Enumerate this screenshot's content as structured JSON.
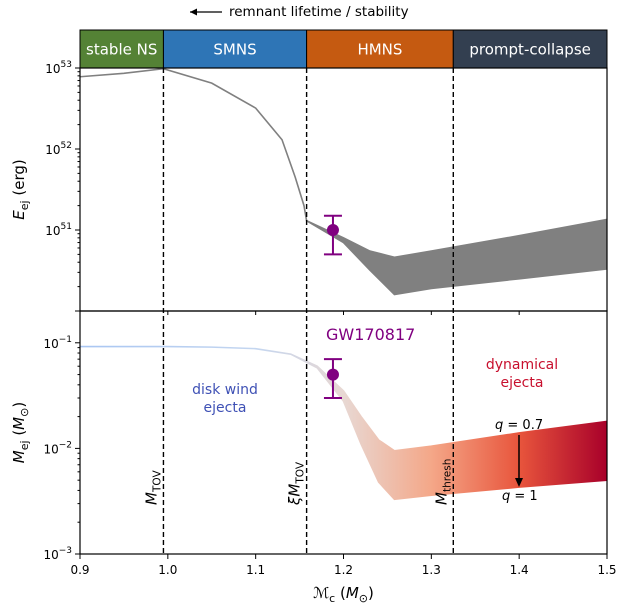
{
  "chart_data": [
    {
      "type": "area",
      "panel": "top",
      "ylabel": "E_ej (erg)",
      "yscale": "log",
      "ylim": [
        1e+50,
        1e+53
      ],
      "xlim": [
        0.9,
        1.5
      ],
      "y_ticks": [
        {
          "mantissa": "10",
          "exp": "51",
          "value": 1e+51
        },
        {
          "mantissa": "10",
          "exp": "52",
          "value": 1e+52
        },
        {
          "mantissa": "10",
          "exp": "53",
          "value": 1e+53
        }
      ],
      "band_color": "#808080",
      "series": [
        {
          "x": [
            0.9,
            0.95,
            0.995,
            1.05,
            1.1,
            1.13,
            1.145,
            1.155,
            1.158,
            1.2,
            1.23,
            1.258,
            1.3,
            1.4,
            1.5
          ],
          "upper": [
            7.8e+52,
            8.6e+52,
            9.8e+52,
            6.5e+52,
            3.2e+52,
            1.3e+52,
            4.5e+51,
            2e+51,
            1.3e+51,
            8e+50,
            5.5e+50,
            4.6e+50,
            5.5e+50,
            8.5e+50,
            1.35e+51
          ],
          "lower": [
            7.8e+52,
            8.6e+52,
            9.8e+52,
            6.5e+52,
            3.2e+52,
            1.3e+52,
            4.5e+51,
            2e+51,
            1.3e+51,
            7e+50,
            3.2e+50,
            1.6e+50,
            1.9e+50,
            2.5e+50,
            3.3e+50
          ]
        }
      ],
      "point": {
        "x": 1.188,
        "y": 1e+51,
        "yerr": [
          5e+50,
          1.5e+51
        ],
        "color": "#800080"
      }
    },
    {
      "type": "area",
      "panel": "bottom",
      "ylabel": "M_ej (M_⊙)",
      "xlabel": "M_c (M_⊙)",
      "yscale": "log",
      "ylim": [
        0.001,
        0.2
      ],
      "xlim": [
        0.9,
        1.5
      ],
      "x_ticks": [
        "0.9",
        "1.0",
        "1.1",
        "1.2",
        "1.3",
        "1.4",
        "1.5"
      ],
      "y_ticks": [
        {
          "mantissa": "10",
          "exp": "−3",
          "value": 0.001
        },
        {
          "mantissa": "10",
          "exp": "−2",
          "value": 0.01
        },
        {
          "mantissa": "10",
          "exp": "−1",
          "value": 0.1
        }
      ],
      "series": [
        {
          "x": [
            0.9,
            1.0,
            1.05,
            1.1,
            1.14,
            1.17,
            1.2,
            1.22,
            1.24,
            1.258,
            1.3,
            1.4,
            1.5
          ],
          "upper": [
            0.092,
            0.092,
            0.091,
            0.088,
            0.078,
            0.06,
            0.035,
            0.02,
            0.012,
            0.0095,
            0.0105,
            0.014,
            0.018
          ],
          "lower": [
            0.092,
            0.092,
            0.091,
            0.088,
            0.078,
            0.058,
            0.028,
            0.011,
            0.0048,
            0.0033,
            0.0036,
            0.0043,
            0.005
          ]
        }
      ],
      "point": {
        "x": 1.188,
        "y": 0.05,
        "yerr": [
          0.03,
          0.07
        ],
        "color": "#800080"
      },
      "gradient_stops": [
        {
          "x": 0.9,
          "color": "#a9c6f2"
        },
        {
          "x": 1.1,
          "color": "#c4d6f0"
        },
        {
          "x": 1.2,
          "color": "#e8d8d3"
        },
        {
          "x": 1.3,
          "color": "#f4a788"
        },
        {
          "x": 1.4,
          "color": "#e8553c"
        },
        {
          "x": 1.5,
          "color": "#a8002a"
        }
      ]
    }
  ],
  "regions": [
    {
      "label": "stable NS",
      "x0": 0.9,
      "x1": 0.995,
      "color": "#548235"
    },
    {
      "label": "SMNS",
      "x0": 0.995,
      "x1": 1.158,
      "color": "#2e75b6"
    },
    {
      "label": "HMNS",
      "x0": 1.158,
      "x1": 1.325,
      "color": "#c55a11"
    },
    {
      "label": "prompt-collapse",
      "x0": 1.325,
      "x1": 1.5,
      "color": "#333f50"
    }
  ],
  "vlines": [
    {
      "x": 0.995,
      "label": "M",
      "sub": "TOV",
      "prefix": ""
    },
    {
      "x": 1.158,
      "label": "M",
      "sub": "TOV",
      "prefix": "ξ"
    },
    {
      "x": 1.325,
      "label": "M",
      "sub": "thresh",
      "prefix": ""
    }
  ],
  "annotations": {
    "top_arrow_text": "remnant lifetime / stability",
    "gw_label": "GW170817",
    "disk_wind_line1": "disk wind",
    "disk_wind_line2": "ejecta",
    "dynamical_line1": "dynamical",
    "dynamical_line2": "ejecta",
    "q_top": "q = 0.7",
    "q_bottom": "q = 1",
    "disk_wind_color": "#3f51b5",
    "dynamical_color": "#c8102e",
    "gw_color": "#800080"
  }
}
